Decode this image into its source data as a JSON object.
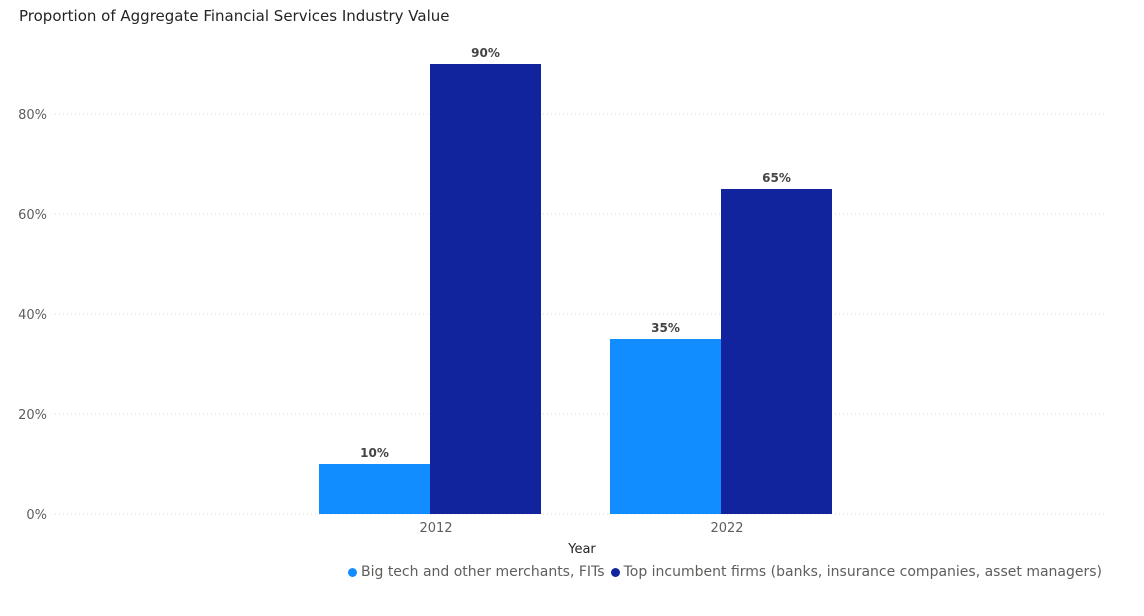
{
  "chart_data": {
    "type": "bar",
    "title": "Proportion of Aggregate Financial Services Industry Value",
    "xlabel": "Year",
    "ylabel": "",
    "categories": [
      "2012",
      "2022"
    ],
    "series": [
      {
        "name": "Big tech and other merchants, FITs",
        "values": [
          10,
          35
        ],
        "labels": [
          "10%",
          "35%"
        ],
        "color": "#118DFF"
      },
      {
        "name": "Top incumbent firms (banks, insurance companies, asset managers)",
        "values": [
          90,
          65
        ],
        "labels": [
          "90%",
          "65%"
        ],
        "color": "#12239E"
      }
    ],
    "ylim": [
      0,
      90
    ],
    "yticks": [
      0,
      20,
      40,
      60,
      80
    ],
    "ytick_labels": [
      "0%",
      "20%",
      "40%",
      "60%",
      "80%"
    ],
    "grid": true,
    "legend": "bottom-right"
  }
}
